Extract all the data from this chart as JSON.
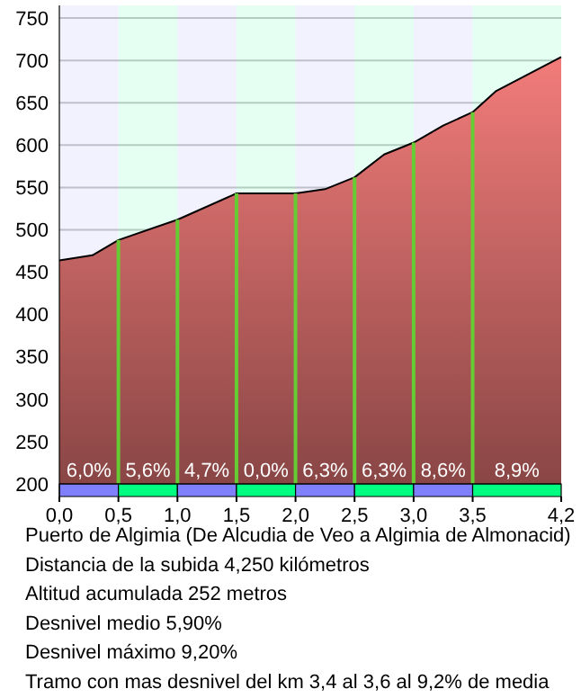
{
  "chart_data": {
    "type": "area",
    "color": "#f27c7a",
    "x": [
      0,
      0.28,
      0.5,
      1.0,
      1.5,
      2.0,
      2.25,
      2.5,
      2.75,
      3.0,
      3.25,
      3.5,
      3.7,
      4.25
    ],
    "values": [
      464,
      470,
      488,
      512,
      543,
      543,
      548,
      562,
      589,
      603,
      623,
      639,
      664,
      704
    ],
    "xlim": [
      0,
      4.25
    ],
    "ylim": [
      200,
      765
    ],
    "xticks": [
      {
        "value": 0,
        "label": "0,0"
      },
      {
        "value": 0.5,
        "label": "0,5"
      },
      {
        "value": 1,
        "label": "1,0"
      },
      {
        "value": 1.5,
        "label": "1,5"
      },
      {
        "value": 2,
        "label": "2,0"
      },
      {
        "value": 2.5,
        "label": "2,5"
      },
      {
        "value": 3,
        "label": "3,0"
      },
      {
        "value": 3.5,
        "label": "3,5"
      },
      {
        "value": 4.25,
        "label": "4,2"
      }
    ],
    "yticks": [
      200,
      250,
      300,
      350,
      400,
      450,
      500,
      550,
      600,
      650,
      700,
      750
    ],
    "grid": "y",
    "ref_lines": [
      {
        "axis": "x",
        "value": 0.5,
        "color": "#66cc33"
      },
      {
        "axis": "x",
        "value": 1,
        "color": "#66cc33"
      },
      {
        "axis": "x",
        "value": 1.5,
        "color": "#66cc33"
      },
      {
        "axis": "x",
        "value": 2,
        "color": "#66cc33"
      },
      {
        "axis": "x",
        "value": 2.5,
        "color": "#66cc33"
      },
      {
        "axis": "x",
        "value": 3,
        "color": "#66cc33"
      },
      {
        "axis": "x",
        "value": 3.5,
        "color": "#66cc33"
      }
    ],
    "bands": [
      {
        "axis": "x",
        "from": 0,
        "to": 0.5,
        "label": "6,0%",
        "color": "#8080ff"
      },
      {
        "axis": "x",
        "from": 0.5,
        "to": 1,
        "label": "5,6%",
        "color": "#00ff80"
      },
      {
        "axis": "x",
        "from": 1,
        "to": 1.5,
        "label": "4,7%",
        "color": "#8080ff"
      },
      {
        "axis": "x",
        "from": 1.5,
        "to": 2,
        "label": "0,0%",
        "color": "#00ff80"
      },
      {
        "axis": "x",
        "from": 2,
        "to": 2.5,
        "label": "6,3%",
        "color": "#8080ff"
      },
      {
        "axis": "x",
        "from": 2.5,
        "to": 3,
        "label": "6,3%",
        "color": "#00ff80"
      },
      {
        "axis": "x",
        "from": 3,
        "to": 3.5,
        "label": "8,6%",
        "color": "#8080ff"
      },
      {
        "axis": "x",
        "from": 3.5,
        "to": 4.25,
        "label": "8,9%",
        "color": "#00ff80"
      }
    ],
    "annotations": [
      "Puerto de Algimia (De Alcudia de Veo a Algimia de Almonacid)",
      "Distancia de la subida 4,250 kilómetros",
      "Altitud acumulada 252 metros",
      "Desnivel medio 5,90%",
      "Desnivel máximo 9,20%",
      "Tramo con mas desnivel del km 3,4 al 3,6 al 9,2% de media"
    ]
  }
}
